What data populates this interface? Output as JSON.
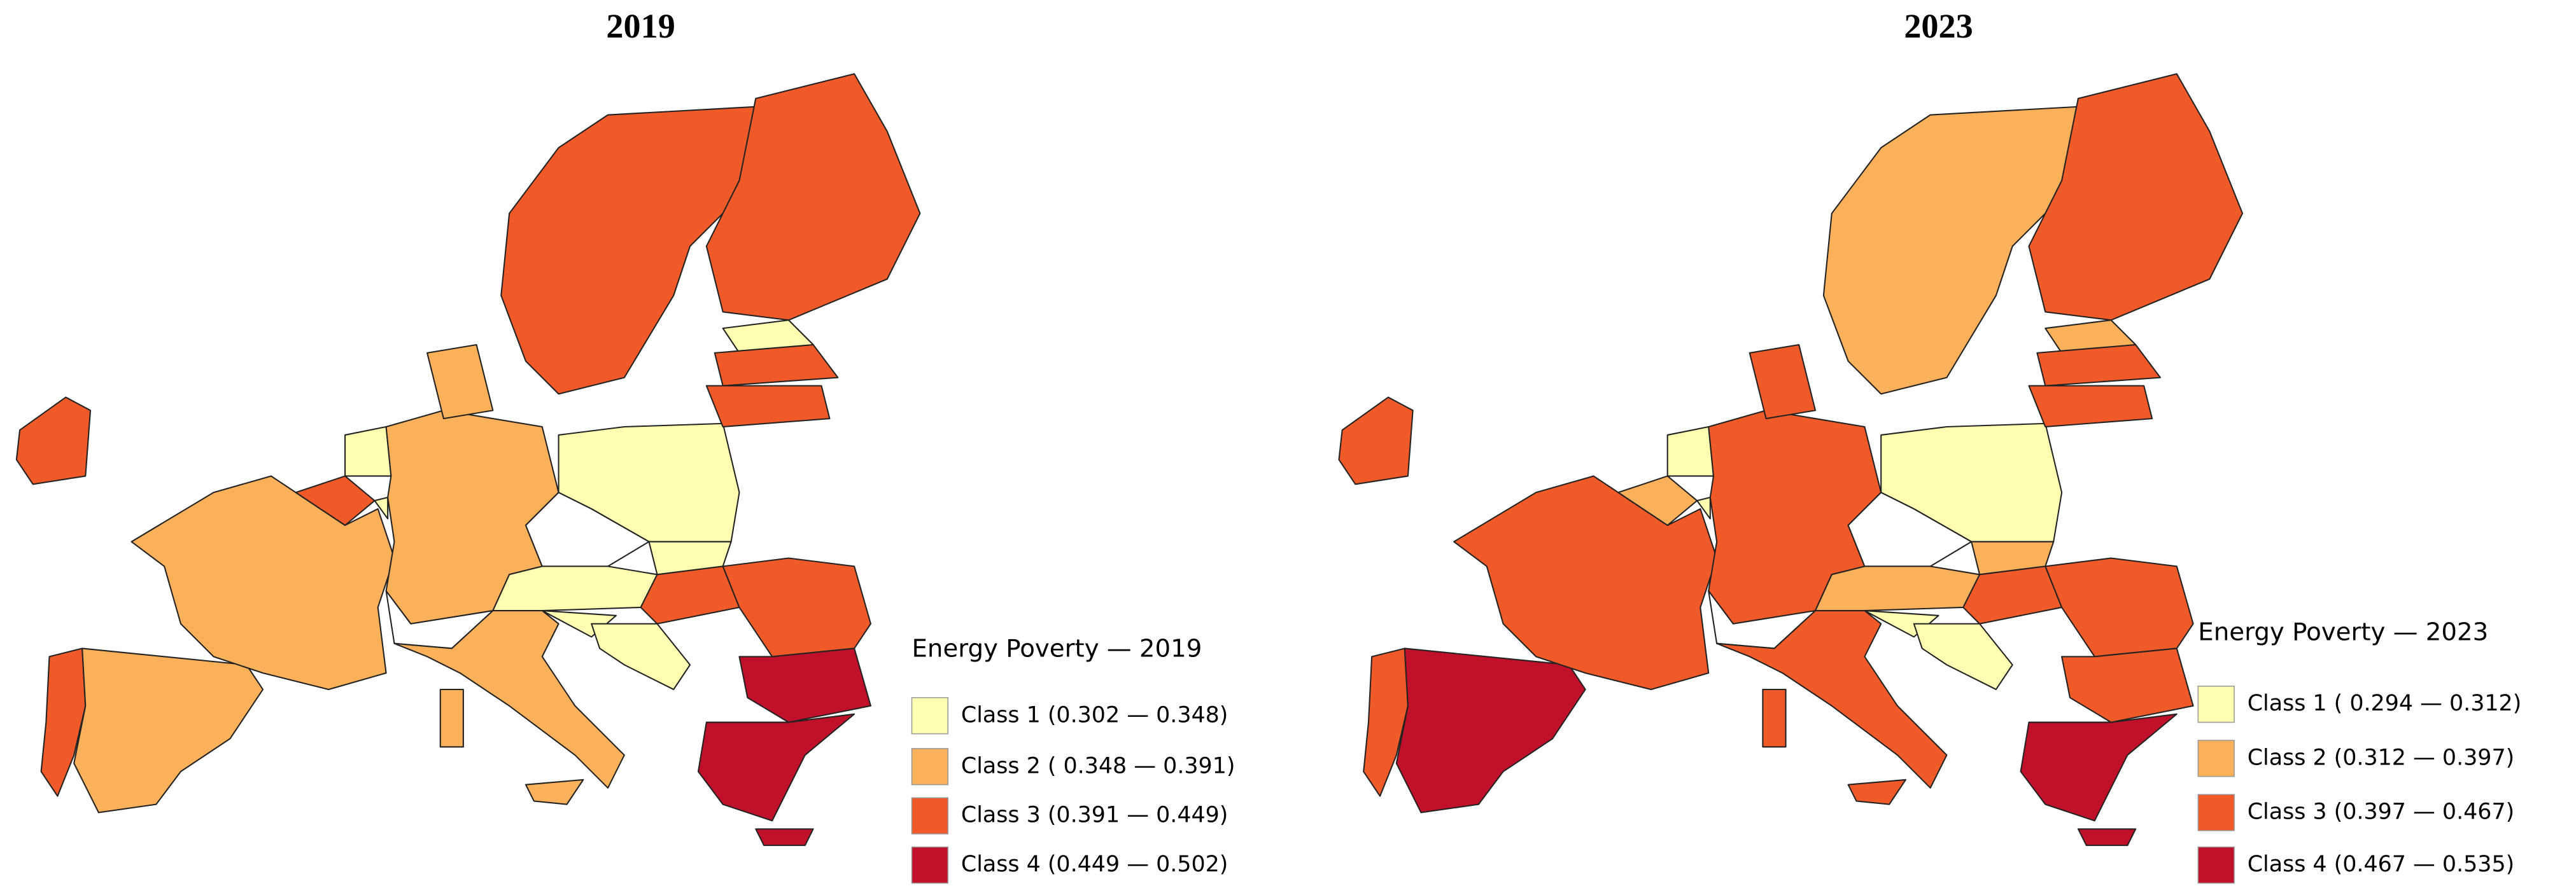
{
  "maps": [
    {
      "title": "2019",
      "legend": {
        "title": "Energy Poverty — 2019",
        "items": [
          {
            "label": "Class 1 (0.302 — 0.348)",
            "color": "#ffffb2"
          },
          {
            "label": "Class 2 ( 0.348 — 0.391)",
            "color": "#fbb05a"
          },
          {
            "label": "Class 3 (0.391 — 0.449)",
            "color": "#f05a28"
          },
          {
            "label": "Class 4 (0.449 — 0.502)",
            "color": "#c0102a"
          }
        ]
      }
    },
    {
      "title": "2023",
      "legend": {
        "title": "Energy Poverty — 2023",
        "items": [
          {
            "label": "Class 1 ( 0.294 — 0.312)",
            "color": "#ffffb2"
          },
          {
            "label": "Class 2 (0.312 — 0.397)",
            "color": "#fbb05a"
          },
          {
            "label": "Class 3 (0.397 — 0.467)",
            "color": "#f05a28"
          },
          {
            "label": "Class 4 (0.467 — 0.535)",
            "color": "#c0102a"
          }
        ]
      }
    }
  ]
}
